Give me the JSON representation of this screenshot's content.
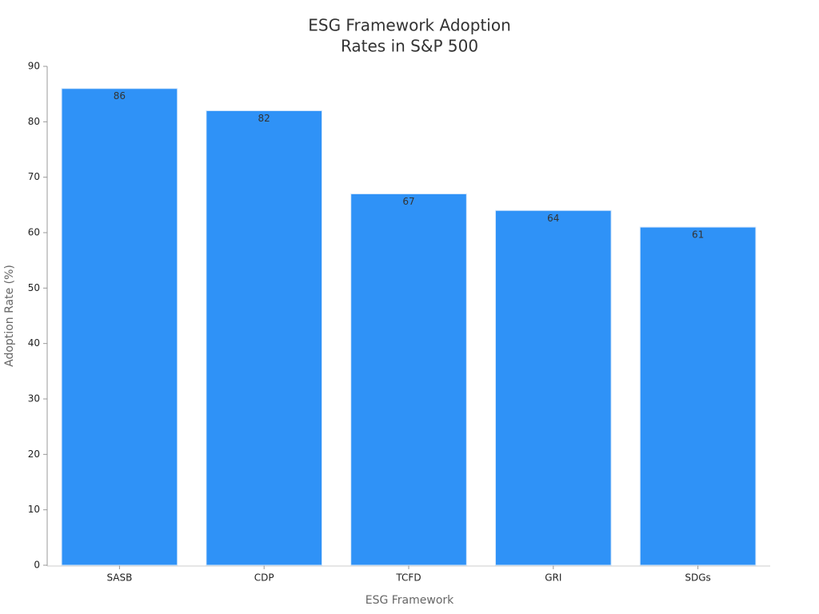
{
  "chart_data": {
    "type": "bar",
    "title": [
      "ESG Framework Adoption",
      "Rates in S&P 500"
    ],
    "x_label": "ESG Framework",
    "y_label": "Adoption Rate (%)",
    "categories": [
      "SASB",
      "CDP",
      "TCFD",
      "GRI",
      "SDGs"
    ],
    "values": [
      86,
      82,
      67,
      64,
      61
    ],
    "color": "#2f92f7",
    "ylim": [
      0,
      90
    ],
    "yticks": [
      0,
      10,
      20,
      30,
      40,
      50,
      60,
      70,
      80,
      90
    ],
    "grid": false
  }
}
